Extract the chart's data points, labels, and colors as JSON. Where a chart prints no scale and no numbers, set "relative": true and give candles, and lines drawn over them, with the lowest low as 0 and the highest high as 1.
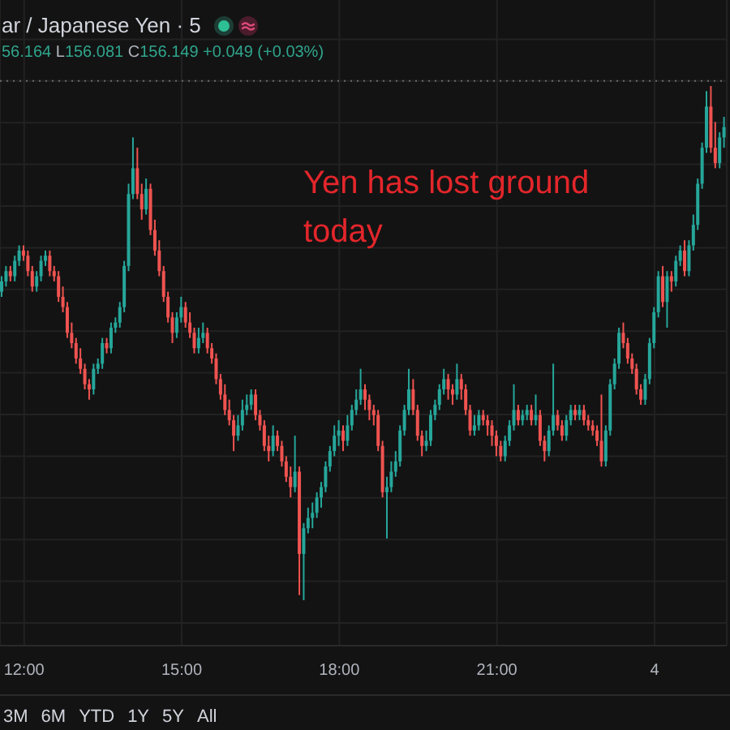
{
  "chart_data": {
    "type": "candlestick",
    "title": "ar / Japanese Yen · 5",
    "subtitle": "56.164 L156.081 C156.149 +0.049 (+0.03%)",
    "annotations": [
      "Yen has lost ground today",
      "3M",
      "6M",
      "YTD",
      "1Y",
      "5Y",
      "All"
    ],
    "relative": true,
    "grid": true,
    "ref_lines": [
      {
        "axis": "y",
        "value": 1.01,
        "line_style": "dotted",
        "color": "#6b6b6b"
      }
    ],
    "categories": [
      null,
      null,
      null,
      null,
      null,
      "12:00",
      null,
      null,
      null,
      null,
      null,
      null,
      null,
      null,
      null,
      null,
      null,
      null,
      null,
      null,
      null,
      null,
      null,
      null,
      null,
      null,
      null,
      null,
      null,
      null,
      null,
      null,
      null,
      null,
      null,
      null,
      null,
      null,
      null,
      null,
      null,
      "15:00",
      null,
      null,
      null,
      null,
      null,
      null,
      null,
      null,
      null,
      null,
      null,
      null,
      null,
      null,
      null,
      null,
      null,
      null,
      null,
      null,
      null,
      null,
      null,
      null,
      null,
      null,
      null,
      null,
      null,
      null,
      null,
      null,
      null,
      null,
      null,
      "18:00",
      null,
      null,
      null,
      null,
      null,
      null,
      null,
      null,
      null,
      null,
      null,
      null,
      null,
      null,
      null,
      null,
      null,
      null,
      null,
      null,
      null,
      null,
      null,
      null,
      null,
      null,
      null,
      null,
      null,
      null,
      null,
      null,
      null,
      null,
      null,
      "21:00",
      null,
      null,
      null,
      null,
      null,
      null,
      null,
      null,
      null,
      null,
      null,
      null,
      null,
      null,
      null,
      null,
      null,
      null,
      null,
      null,
      null,
      null,
      null,
      null,
      null,
      null,
      null,
      null,
      null,
      null,
      null,
      null,
      null,
      null,
      null,
      "4",
      null,
      null,
      null,
      null,
      null,
      null,
      null,
      null,
      null,
      null,
      null,
      null,
      null,
      null,
      null,
      null
    ],
    "ohlc": [
      [
        0.6,
        0.63,
        0.59,
        0.62
      ],
      [
        0.62,
        0.65,
        0.61,
        0.64
      ],
      [
        0.64,
        0.65,
        0.62,
        0.63
      ],
      [
        0.63,
        0.67,
        0.62,
        0.66
      ],
      [
        0.66,
        0.69,
        0.65,
        0.68
      ],
      [
        0.68,
        0.69,
        0.66,
        0.67
      ],
      [
        0.67,
        0.68,
        0.63,
        0.64
      ],
      [
        0.64,
        0.65,
        0.6,
        0.61
      ],
      [
        0.61,
        0.64,
        0.6,
        0.63
      ],
      [
        0.63,
        0.67,
        0.62,
        0.66
      ],
      [
        0.66,
        0.68,
        0.65,
        0.67
      ],
      [
        0.67,
        0.68,
        0.63,
        0.64
      ],
      [
        0.64,
        0.65,
        0.62,
        0.63
      ],
      [
        0.63,
        0.64,
        0.58,
        0.59
      ],
      [
        0.59,
        0.61,
        0.56,
        0.57
      ],
      [
        0.57,
        0.58,
        0.51,
        0.52
      ],
      [
        0.52,
        0.54,
        0.49,
        0.5
      ],
      [
        0.5,
        0.51,
        0.46,
        0.47
      ],
      [
        0.47,
        0.49,
        0.44,
        0.45
      ],
      [
        0.45,
        0.46,
        0.41,
        0.42
      ],
      [
        0.42,
        0.43,
        0.39,
        0.41
      ],
      [
        0.41,
        0.46,
        0.4,
        0.45
      ],
      [
        0.45,
        0.47,
        0.44,
        0.46
      ],
      [
        0.46,
        0.51,
        0.45,
        0.5
      ],
      [
        0.5,
        0.51,
        0.48,
        0.49
      ],
      [
        0.49,
        0.54,
        0.48,
        0.53
      ],
      [
        0.53,
        0.55,
        0.52,
        0.54
      ],
      [
        0.54,
        0.58,
        0.53,
        0.57
      ],
      [
        0.57,
        0.66,
        0.56,
        0.65
      ],
      [
        0.65,
        0.81,
        0.64,
        0.79
      ],
      [
        0.79,
        0.9,
        0.78,
        0.84
      ],
      [
        0.84,
        0.88,
        0.78,
        0.79
      ],
      [
        0.79,
        0.81,
        0.74,
        0.76
      ],
      [
        0.76,
        0.82,
        0.75,
        0.8
      ],
      [
        0.8,
        0.81,
        0.71,
        0.72
      ],
      [
        0.72,
        0.74,
        0.67,
        0.68
      ],
      [
        0.68,
        0.7,
        0.63,
        0.64
      ],
      [
        0.64,
        0.65,
        0.58,
        0.59
      ],
      [
        0.59,
        0.6,
        0.54,
        0.55
      ],
      [
        0.55,
        0.56,
        0.5,
        0.52
      ],
      [
        0.52,
        0.56,
        0.51,
        0.55
      ],
      [
        0.55,
        0.59,
        0.54,
        0.57
      ],
      [
        0.57,
        0.58,
        0.53,
        0.54
      ],
      [
        0.54,
        0.56,
        0.51,
        0.52
      ],
      [
        0.52,
        0.53,
        0.48,
        0.49
      ],
      [
        0.49,
        0.53,
        0.48,
        0.51
      ],
      [
        0.51,
        0.54,
        0.5,
        0.52
      ],
      [
        0.52,
        0.53,
        0.48,
        0.49
      ],
      [
        0.49,
        0.5,
        0.46,
        0.47
      ],
      [
        0.47,
        0.48,
        0.42,
        0.43
      ],
      [
        0.43,
        0.44,
        0.39,
        0.4
      ],
      [
        0.4,
        0.42,
        0.36,
        0.37
      ],
      [
        0.37,
        0.39,
        0.34,
        0.35
      ],
      [
        0.35,
        0.36,
        0.29,
        0.32
      ],
      [
        0.32,
        0.36,
        0.31,
        0.34
      ],
      [
        0.34,
        0.39,
        0.33,
        0.37
      ],
      [
        0.37,
        0.4,
        0.36,
        0.38
      ],
      [
        0.38,
        0.41,
        0.37,
        0.4
      ],
      [
        0.4,
        0.41,
        0.35,
        0.36
      ],
      [
        0.36,
        0.37,
        0.33,
        0.34
      ],
      [
        0.34,
        0.35,
        0.29,
        0.3
      ],
      [
        0.3,
        0.32,
        0.27,
        0.29
      ],
      [
        0.29,
        0.34,
        0.28,
        0.32
      ],
      [
        0.32,
        0.33,
        0.29,
        0.3
      ],
      [
        0.3,
        0.31,
        0.26,
        0.27
      ],
      [
        0.27,
        0.28,
        0.23,
        0.24
      ],
      [
        0.24,
        0.26,
        0.2,
        0.22
      ],
      [
        0.22,
        0.32,
        0.21,
        0.25
      ],
      [
        0.25,
        0.26,
        0.01,
        0.09
      ],
      [
        0.09,
        0.15,
        0.0,
        0.14
      ],
      [
        0.14,
        0.18,
        0.13,
        0.16
      ],
      [
        0.16,
        0.19,
        0.14,
        0.17
      ],
      [
        0.17,
        0.21,
        0.16,
        0.2
      ],
      [
        0.2,
        0.23,
        0.18,
        0.22
      ],
      [
        0.22,
        0.27,
        0.21,
        0.26
      ],
      [
        0.26,
        0.3,
        0.25,
        0.29
      ],
      [
        0.29,
        0.34,
        0.28,
        0.32
      ],
      [
        0.32,
        0.35,
        0.3,
        0.33
      ],
      [
        0.33,
        0.34,
        0.29,
        0.31
      ],
      [
        0.31,
        0.36,
        0.3,
        0.34
      ],
      [
        0.34,
        0.38,
        0.33,
        0.37
      ],
      [
        0.37,
        0.41,
        0.36,
        0.39
      ],
      [
        0.39,
        0.45,
        0.38,
        0.41
      ],
      [
        0.41,
        0.42,
        0.37,
        0.39
      ],
      [
        0.39,
        0.4,
        0.35,
        0.37
      ],
      [
        0.37,
        0.38,
        0.34,
        0.36
      ],
      [
        0.36,
        0.37,
        0.29,
        0.3
      ],
      [
        0.3,
        0.31,
        0.2,
        0.21
      ],
      [
        0.21,
        0.24,
        0.12,
        0.22
      ],
      [
        0.22,
        0.27,
        0.21,
        0.25
      ],
      [
        0.25,
        0.29,
        0.24,
        0.27
      ],
      [
        0.27,
        0.34,
        0.26,
        0.33
      ],
      [
        0.33,
        0.38,
        0.32,
        0.37
      ],
      [
        0.37,
        0.45,
        0.36,
        0.41
      ],
      [
        0.41,
        0.43,
        0.36,
        0.37
      ],
      [
        0.37,
        0.38,
        0.31,
        0.32
      ],
      [
        0.32,
        0.33,
        0.28,
        0.3
      ],
      [
        0.3,
        0.33,
        0.29,
        0.31
      ],
      [
        0.31,
        0.37,
        0.3,
        0.36
      ],
      [
        0.36,
        0.39,
        0.35,
        0.38
      ],
      [
        0.38,
        0.42,
        0.37,
        0.41
      ],
      [
        0.41,
        0.45,
        0.4,
        0.43
      ],
      [
        0.43,
        0.44,
        0.39,
        0.41
      ],
      [
        0.41,
        0.42,
        0.38,
        0.4
      ],
      [
        0.4,
        0.46,
        0.39,
        0.43
      ],
      [
        0.43,
        0.44,
        0.39,
        0.41
      ],
      [
        0.41,
        0.42,
        0.36,
        0.37
      ],
      [
        0.37,
        0.38,
        0.32,
        0.33
      ],
      [
        0.33,
        0.36,
        0.32,
        0.34
      ],
      [
        0.34,
        0.37,
        0.33,
        0.36
      ],
      [
        0.36,
        0.37,
        0.34,
        0.35
      ],
      [
        0.35,
        0.36,
        0.32,
        0.34
      ],
      [
        0.34,
        0.35,
        0.3,
        0.32
      ],
      [
        0.32,
        0.33,
        0.28,
        0.3
      ],
      [
        0.3,
        0.31,
        0.27,
        0.28
      ],
      [
        0.28,
        0.32,
        0.27,
        0.31
      ],
      [
        0.31,
        0.35,
        0.3,
        0.34
      ],
      [
        0.34,
        0.42,
        0.33,
        0.37
      ],
      [
        0.37,
        0.38,
        0.34,
        0.35
      ],
      [
        0.35,
        0.37,
        0.34,
        0.36
      ],
      [
        0.36,
        0.38,
        0.35,
        0.37
      ],
      [
        0.37,
        0.38,
        0.34,
        0.35
      ],
      [
        0.35,
        0.4,
        0.34,
        0.36
      ],
      [
        0.36,
        0.37,
        0.3,
        0.31
      ],
      [
        0.31,
        0.32,
        0.27,
        0.29
      ],
      [
        0.29,
        0.34,
        0.28,
        0.33
      ],
      [
        0.33,
        0.46,
        0.32,
        0.36
      ],
      [
        0.36,
        0.37,
        0.33,
        0.34
      ],
      [
        0.34,
        0.35,
        0.31,
        0.32
      ],
      [
        0.32,
        0.36,
        0.31,
        0.35
      ],
      [
        0.35,
        0.38,
        0.34,
        0.37
      ],
      [
        0.37,
        0.38,
        0.35,
        0.36
      ],
      [
        0.36,
        0.38,
        0.35,
        0.37
      ],
      [
        0.37,
        0.38,
        0.34,
        0.35
      ],
      [
        0.35,
        0.36,
        0.33,
        0.34
      ],
      [
        0.34,
        0.35,
        0.32,
        0.33
      ],
      [
        0.33,
        0.34,
        0.3,
        0.31
      ],
      [
        0.31,
        0.4,
        0.26,
        0.27
      ],
      [
        0.27,
        0.34,
        0.26,
        0.33
      ],
      [
        0.33,
        0.43,
        0.32,
        0.42
      ],
      [
        0.42,
        0.47,
        0.41,
        0.46
      ],
      [
        0.46,
        0.53,
        0.45,
        0.52
      ],
      [
        0.52,
        0.54,
        0.49,
        0.5
      ],
      [
        0.5,
        0.51,
        0.46,
        0.47
      ],
      [
        0.47,
        0.48,
        0.44,
        0.45
      ],
      [
        0.45,
        0.46,
        0.4,
        0.41
      ],
      [
        0.41,
        0.42,
        0.38,
        0.39
      ],
      [
        0.39,
        0.44,
        0.38,
        0.43
      ],
      [
        0.43,
        0.51,
        0.42,
        0.5
      ],
      [
        0.5,
        0.57,
        0.49,
        0.56
      ],
      [
        0.56,
        0.64,
        0.55,
        0.63
      ],
      [
        0.63,
        0.65,
        0.57,
        0.58
      ],
      [
        0.58,
        0.64,
        0.53,
        0.63
      ],
      [
        0.63,
        0.64,
        0.6,
        0.62
      ],
      [
        0.62,
        0.67,
        0.61,
        0.66
      ],
      [
        0.66,
        0.69,
        0.65,
        0.68
      ],
      [
        0.68,
        0.7,
        0.63,
        0.64
      ],
      [
        0.64,
        0.7,
        0.63,
        0.69
      ],
      [
        0.69,
        0.75,
        0.68,
        0.73
      ],
      [
        0.73,
        0.82,
        0.72,
        0.81
      ],
      [
        0.81,
        0.89,
        0.8,
        0.88
      ],
      [
        0.88,
        0.99,
        0.87,
        0.96
      ],
      [
        0.96,
        1.0,
        0.87,
        0.88
      ],
      [
        0.88,
        0.93,
        0.84,
        0.85
      ],
      [
        0.85,
        0.91,
        0.84,
        0.9
      ],
      [
        0.9,
        0.94,
        0.88,
        0.92
      ]
    ],
    "colors": [
      "#26a69a",
      "#26a69a",
      "#ef5350",
      "#26a69a",
      "#26a69a",
      "#ef5350",
      "#ef5350",
      "#ef5350",
      "#26a69a",
      "#26a69a",
      "#26a69a",
      "#ef5350",
      "#ef5350",
      "#ef5350",
      "#ef5350",
      "#ef5350",
      "#ef5350",
      "#ef5350",
      "#ef5350",
      "#ef5350",
      "#ef5350",
      "#26a69a",
      "#26a69a",
      "#26a69a",
      "#ef5350",
      "#26a69a",
      "#26a69a",
      "#26a69a",
      "#26a69a",
      "#26a69a",
      "#26a69a",
      "#ef5350",
      "#ef5350",
      "#26a69a",
      "#ef5350",
      "#ef5350",
      "#ef5350",
      "#ef5350",
      "#ef5350",
      "#ef5350",
      "#26a69a",
      "#26a69a",
      "#ef5350",
      "#ef5350",
      "#ef5350",
      "#26a69a",
      "#26a69a",
      "#ef5350",
      "#ef5350",
      "#ef5350",
      "#ef5350",
      "#ef5350",
      "#ef5350",
      "#ef5350",
      "#26a69a",
      "#26a69a",
      "#26a69a",
      "#26a69a",
      "#ef5350",
      "#ef5350",
      "#ef5350",
      "#ef5350",
      "#26a69a",
      "#ef5350",
      "#ef5350",
      "#ef5350",
      "#ef5350",
      "#26a69a",
      "#ef5350",
      "#26a69a",
      "#26a69a",
      "#26a69a",
      "#26a69a",
      "#26a69a",
      "#26a69a",
      "#26a69a",
      "#26a69a",
      "#26a69a",
      "#ef5350",
      "#26a69a",
      "#26a69a",
      "#26a69a",
      "#26a69a",
      "#ef5350",
      "#ef5350",
      "#ef5350",
      "#ef5350",
      "#ef5350",
      "#26a69a",
      "#26a69a",
      "#26a69a",
      "#26a69a",
      "#26a69a",
      "#26a69a",
      "#ef5350",
      "#ef5350",
      "#ef5350",
      "#26a69a",
      "#26a69a",
      "#26a69a",
      "#26a69a",
      "#26a69a",
      "#ef5350",
      "#ef5350",
      "#26a69a",
      "#ef5350",
      "#ef5350",
      "#ef5350",
      "#26a69a",
      "#26a69a",
      "#ef5350",
      "#ef5350",
      "#ef5350",
      "#ef5350",
      "#ef5350",
      "#26a69a",
      "#26a69a",
      "#26a69a",
      "#ef5350",
      "#26a69a",
      "#26a69a",
      "#ef5350",
      "#26a69a",
      "#ef5350",
      "#ef5350",
      "#26a69a",
      "#26a69a",
      "#ef5350",
      "#ef5350",
      "#26a69a",
      "#26a69a",
      "#ef5350",
      "#26a69a",
      "#ef5350",
      "#ef5350",
      "#ef5350",
      "#ef5350",
      "#ef5350",
      "#26a69a",
      "#26a69a",
      "#26a69a",
      "#26a69a",
      "#ef5350",
      "#ef5350",
      "#ef5350",
      "#ef5350",
      "#ef5350",
      "#26a69a",
      "#26a69a",
      "#26a69a",
      "#26a69a",
      "#ef5350",
      "#26a69a",
      "#ef5350",
      "#26a69a",
      "#26a69a",
      "#ef5350",
      "#26a69a",
      "#26a69a",
      "#26a69a",
      "#26a69a",
      "#26a69a",
      "#ef5350",
      "#ef5350",
      "#26a69a",
      "#26a69a"
    ]
  }
}
